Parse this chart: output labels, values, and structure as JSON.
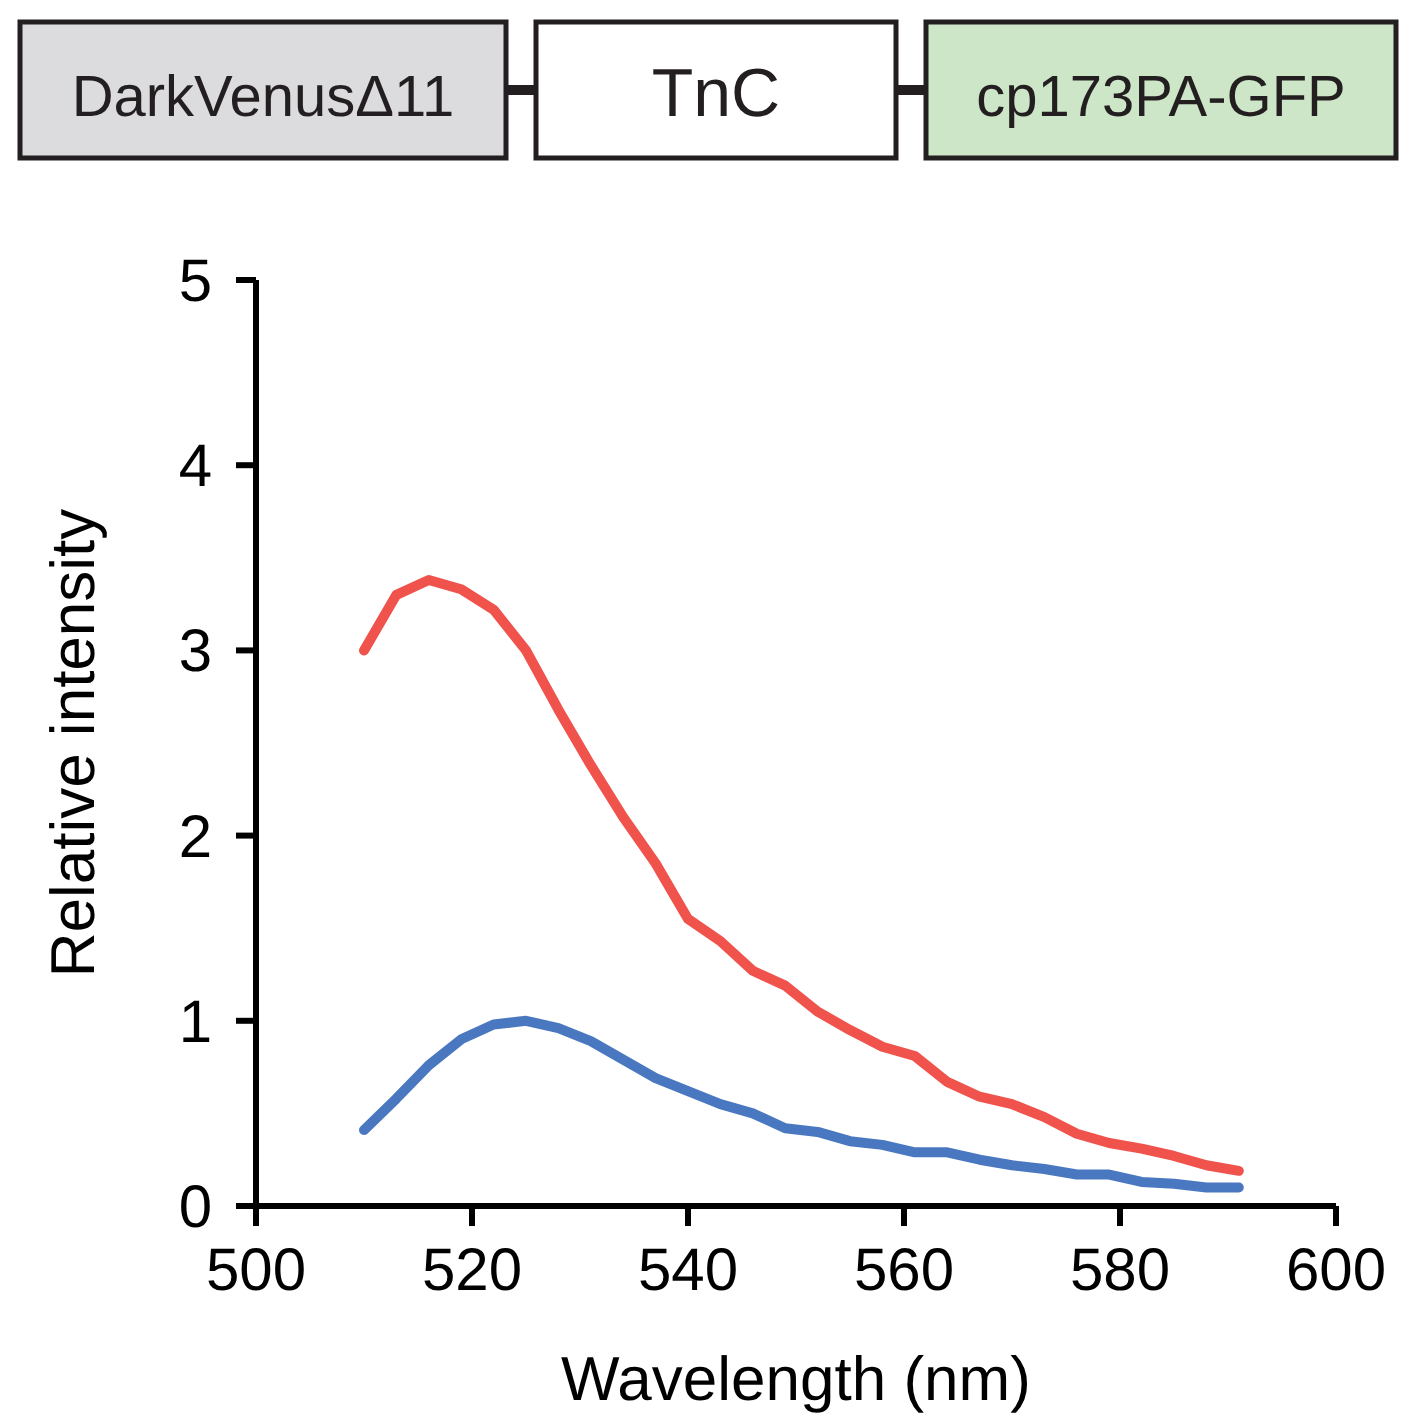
{
  "chart_data": {
    "type": "line",
    "xlabel": "Wavelength (nm)",
    "ylabel": "Relative intensity",
    "annotations": [
      "DarkVenusΔ11",
      "TnC",
      "cp173PA-GFP"
    ],
    "x": [
      510,
      513,
      516,
      519,
      522,
      525,
      528,
      531,
      534,
      537,
      540,
      543,
      546,
      549,
      552,
      555,
      558,
      561,
      564,
      567,
      570,
      573,
      576,
      579,
      582,
      585,
      588,
      591
    ],
    "series": [
      {
        "color": "#f0524c",
        "values": [
          3.0,
          3.3,
          3.38,
          3.33,
          3.22,
          3.0,
          2.68,
          2.38,
          2.1,
          1.85,
          1.55,
          1.43,
          1.27,
          1.19,
          1.05,
          0.95,
          0.86,
          0.81,
          0.67,
          0.59,
          0.55,
          0.48,
          0.39,
          0.34,
          0.31,
          0.27,
          0.22,
          0.19
        ]
      },
      {
        "color": "#4a78c0",
        "values": [
          0.41,
          0.58,
          0.76,
          0.9,
          0.98,
          1.0,
          0.96,
          0.89,
          0.79,
          0.69,
          0.62,
          0.55,
          0.5,
          0.42,
          0.4,
          0.35,
          0.33,
          0.29,
          0.29,
          0.25,
          0.22,
          0.2,
          0.17,
          0.17,
          0.13,
          0.12,
          0.1,
          0.1
        ]
      }
    ],
    "xlim": [
      500,
      600
    ],
    "xticks": [
      500,
      520,
      540,
      560,
      580,
      600
    ],
    "ylim": [
      0,
      5
    ],
    "yticks": [
      0,
      1,
      2,
      3,
      4,
      5
    ],
    "grid": false,
    "marker": "none",
    "line_style": "solid"
  }
}
